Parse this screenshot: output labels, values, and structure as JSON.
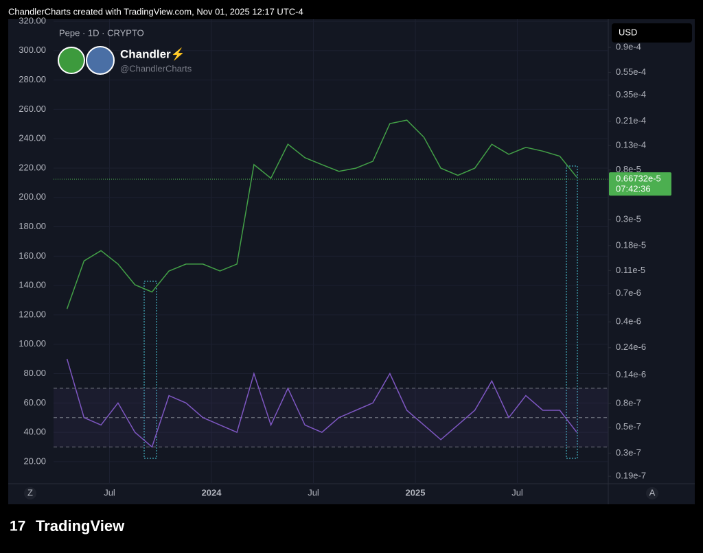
{
  "header_text": "ChandlerCharts created with TradingView.com, Nov 01, 2025 12:17 UTC-4",
  "watermark": {
    "symbol": "Pepe · 1D · CRYPTO",
    "author": "Chandler⚡",
    "handle": "@ChandlerCharts"
  },
  "currency": "USD",
  "buttons": [
    "Z",
    "A"
  ],
  "brand": "TradingView",
  "chart_data": {
    "type": "line",
    "x": [
      "2023-04",
      "2023-05",
      "2023-06",
      "2023-07",
      "2023-08",
      "2023-09",
      "2023-10",
      "2023-11",
      "2023-12",
      "2024-01",
      "2024-02",
      "2024-03",
      "2024-04",
      "2024-05",
      "2024-06",
      "2024-07",
      "2024-08",
      "2024-09",
      "2024-10",
      "2024-11",
      "2024-12",
      "2025-01",
      "2025-02",
      "2025-03",
      "2025-04",
      "2025-05",
      "2025-06",
      "2025-07",
      "2025-08",
      "2025-09",
      "2025-10"
    ],
    "series": [
      {
        "color": "#43a047",
        "axis": "y2",
        "values": [
          5.16e-07,
          1.33e-06,
          1.63e-06,
          1.25e-06,
          8.3e-07,
          7.2e-07,
          1.09e-06,
          1.25e-06,
          1.25e-06,
          1.09e-06,
          1.25e-06,
          8.9e-06,
          6.8e-06,
          1.33e-05,
          1.02e-05,
          8.9e-06,
          7.8e-06,
          8.3e-06,
          9.5e-06,
          2e-05,
          2.14e-05,
          1.53e-05,
          8.3e-06,
          7.2e-06,
          8.3e-06,
          1.33e-05,
          1.09e-05,
          1.25e-05,
          1.16e-05,
          1.05e-05,
          6.95e-06
        ]
      },
      {
        "color": "#7e57c2",
        "axis": "y",
        "values": [
          90,
          50,
          45,
          60,
          40,
          30,
          65,
          60,
          50,
          45,
          40,
          80,
          45,
          70,
          45,
          40,
          50,
          55,
          60,
          80,
          55,
          45,
          35,
          45,
          55,
          75,
          50,
          65,
          55,
          55,
          40
        ]
      }
    ],
    "rsi_levels": [
      30,
      50,
      70
    ],
    "ylim": [
      5,
      321.4
    ],
    "yticks": [
      {
        "value": 20,
        "label": "20.00"
      },
      {
        "value": 40,
        "label": "40.00"
      },
      {
        "value": 60,
        "label": "60.00"
      },
      {
        "value": 80,
        "label": "80.00"
      },
      {
        "value": 100,
        "label": "100.00"
      },
      {
        "value": 120,
        "label": "120.00"
      },
      {
        "value": 140,
        "label": "140.00"
      },
      {
        "value": 160,
        "label": "160.00"
      },
      {
        "value": 180,
        "label": "180.00"
      },
      {
        "value": 200,
        "label": "200.00"
      },
      {
        "value": 220,
        "label": "220.00"
      },
      {
        "value": 240,
        "label": "240.00"
      },
      {
        "value": 260,
        "label": "260.00"
      },
      {
        "value": 280,
        "label": "280.00"
      },
      {
        "value": 300,
        "label": "300.00"
      },
      {
        "value": 320,
        "label": "320.00"
      }
    ],
    "y2lim": [
      1.64e-08,
      0.0001568
    ],
    "y2_log": true,
    "y2ticks": [
      {
        "value": 9e-05,
        "label": "0.9e-4"
      },
      {
        "value": 5.5e-05,
        "label": "0.55e-4"
      },
      {
        "value": 3.5e-05,
        "label": "0.35e-4"
      },
      {
        "value": 2.1e-05,
        "label": "0.21e-4"
      },
      {
        "value": 1.3e-05,
        "label": "0.13e-4"
      },
      {
        "value": 8e-06,
        "label": "0.8e-5"
      },
      {
        "value": 3e-06,
        "label": "0.3e-5"
      },
      {
        "value": 1.8e-06,
        "label": "0.18e-5"
      },
      {
        "value": 1.1e-06,
        "label": "0.11e-5"
      },
      {
        "value": 7e-07,
        "label": "0.7e-6"
      },
      {
        "value": 4e-07,
        "label": "0.4e-6"
      },
      {
        "value": 2.4e-07,
        "label": "0.24e-6"
      },
      {
        "value": 1.4e-07,
        "label": "0.14e-6"
      },
      {
        "value": 8e-08,
        "label": "0.8e-7"
      },
      {
        "value": 5e-08,
        "label": "0.5e-7"
      },
      {
        "value": 3e-08,
        "label": "0.3e-7"
      },
      {
        "value": 1.9e-08,
        "label": "0.19e-7"
      }
    ],
    "xticks": [
      {
        "value": "2023-07",
        "label": "Jul"
      },
      {
        "value": "2024-01",
        "label": "2024"
      },
      {
        "value": "2024-07",
        "label": "Jul"
      },
      {
        "value": "2025-01",
        "label": "2025"
      },
      {
        "value": "2025-07",
        "label": "Jul"
      }
    ],
    "last_price": {
      "value": 6.6732e-06,
      "label": "0.66732e-5"
    },
    "countdown": "07:42:36",
    "grid": true
  }
}
